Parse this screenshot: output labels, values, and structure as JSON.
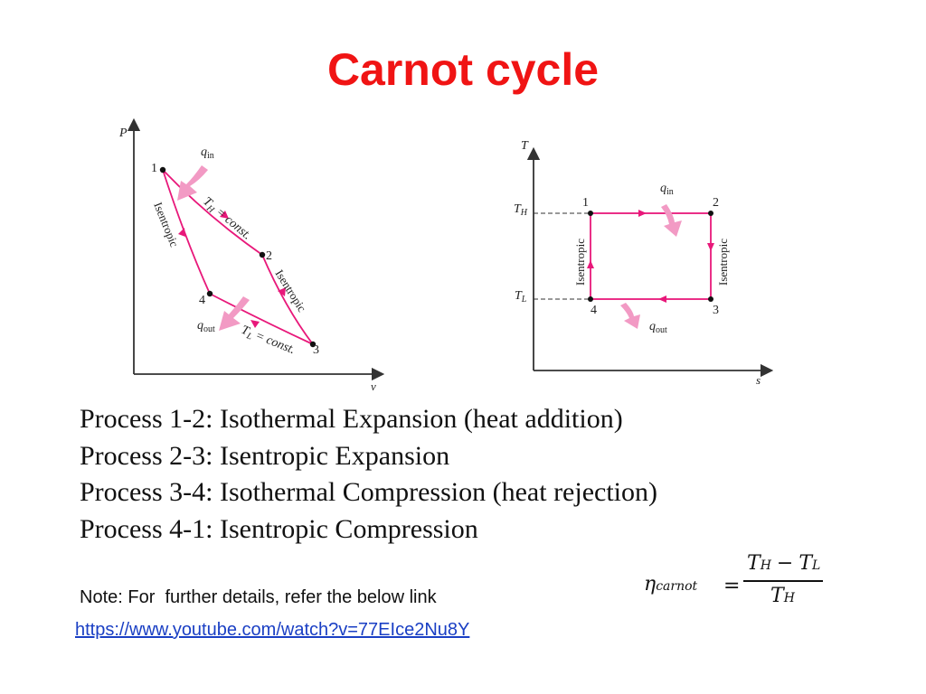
{
  "title": "Carnot cycle",
  "colors": {
    "title": "#f01414",
    "cycle_line": "#e8187a",
    "heat_arrow": "#f29ac4",
    "link": "#1a3fc4"
  },
  "pv_diagram": {
    "axis_y": "P",
    "axis_x": "v",
    "points": [
      "1",
      "2",
      "3",
      "4"
    ],
    "labels": {
      "q_in_sym": "q",
      "q_in_sub": "in",
      "q_out_sym": "q",
      "q_out_sub": "out",
      "th_const": "T",
      "th_const_sub": "H",
      "th_const_rest": " = const.",
      "tl_const": "T",
      "tl_const_sub": "L",
      "tl_const_rest": " = const.",
      "isentropic_left": "Isentropic",
      "isentropic_right": "Isentropic"
    }
  },
  "ts_diagram": {
    "axis_y": "T",
    "axis_x": "s",
    "th_label": "T",
    "th_sub": "H",
    "tl_label": "T",
    "tl_sub": "L",
    "points": [
      "1",
      "2",
      "3",
      "4"
    ],
    "q_in_sym": "q",
    "q_in_sub": "in",
    "q_out_sym": "q",
    "q_out_sub": "out",
    "isentropic_left": "Isentropic",
    "isentropic_right": "Isentropic"
  },
  "processes": [
    "Process 1-2: Isothermal Expansion (heat addition)",
    "Process 2-3: Isentropic Expansion",
    "Process 3-4: Isothermal Compression (heat rejection)",
    "Process 4-1: Isentropic Compression"
  ],
  "note": "Note: For  further details, refer the below link",
  "link": "https://www.youtube.com/watch?v=77EIce2Nu8Y",
  "equation": {
    "eta": "η",
    "eta_sub": "carnot",
    "equals": "=",
    "num_t1": "T",
    "num_t1_sub": "H",
    "minus": "−",
    "num_t2": "T",
    "num_t2_sub": "L",
    "den_t": "T",
    "den_t_sub": "H"
  }
}
